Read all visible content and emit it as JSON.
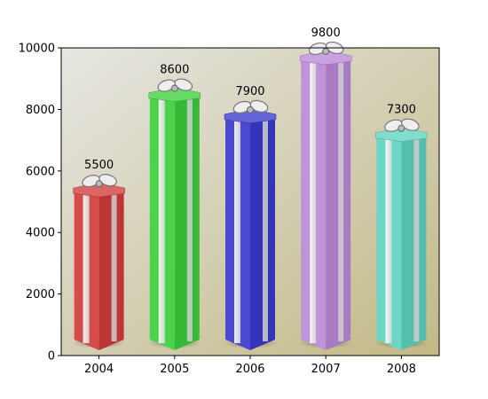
{
  "chart_data": {
    "type": "bar",
    "categories": [
      "2004",
      "2005",
      "2006",
      "2007",
      "2008"
    ],
    "values": [
      5500,
      8600,
      7900,
      9800,
      7300
    ],
    "data_labels": [
      "5500",
      "8600",
      "7900",
      "9800",
      "7300"
    ],
    "ylim": [
      0,
      10000
    ],
    "yticks": [
      0,
      2000,
      4000,
      6000,
      8000,
      10000
    ],
    "ytick_labels": [
      "0",
      "2000",
      "4000",
      "6000",
      "8000",
      "10000"
    ],
    "title": "",
    "xlabel": "",
    "ylabel": "",
    "grid": false,
    "bar_style": "gift-box",
    "background": "gradient",
    "background_colors": [
      "#e6e6e2",
      "#c2b986"
    ],
    "colors": [
      "#d23b3b",
      "#3ccf3c",
      "#3a3acc",
      "#bb88d6",
      "#5fd3bf"
    ]
  }
}
